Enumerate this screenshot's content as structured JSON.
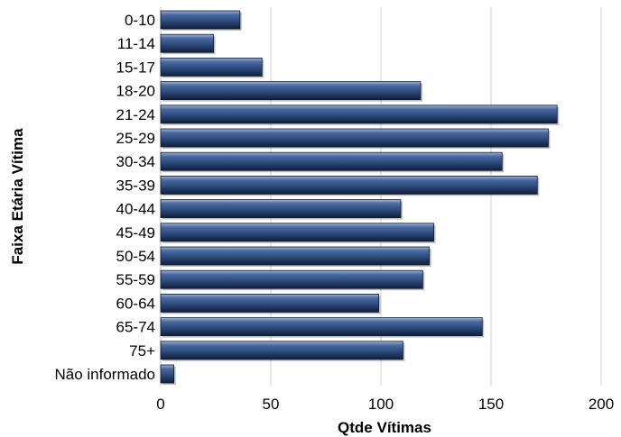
{
  "chart_data": {
    "type": "bar",
    "orientation": "horizontal",
    "categories": [
      "0-10",
      "11-14",
      "15-17",
      "18-20",
      "21-24",
      "25-29",
      "30-34",
      "35-39",
      "40-44",
      "45-49",
      "50-54",
      "55-59",
      "60-64",
      "65-74",
      "75+",
      "Não informado"
    ],
    "values": [
      36,
      24,
      46,
      118,
      180,
      176,
      155,
      171,
      109,
      124,
      122,
      119,
      99,
      146,
      110,
      6
    ],
    "xlabel": "Qtde Vítimas",
    "ylabel": "Faixa Etária Vítima",
    "xlim": [
      0,
      200
    ],
    "xticks": [
      0,
      50,
      100,
      150,
      200
    ],
    "grid": "vertical",
    "bar_color": "#2d4a7c",
    "grid_color": "#d0d0d0"
  }
}
